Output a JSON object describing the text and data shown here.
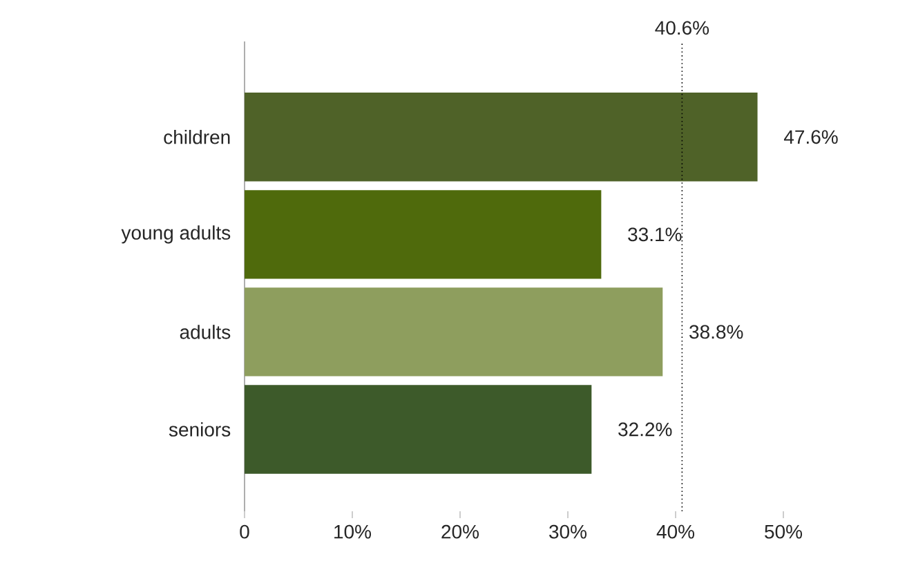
{
  "chart_data": {
    "type": "bar",
    "orientation": "horizontal",
    "categories": [
      "children",
      "young adults",
      "adults",
      "seniors"
    ],
    "values": [
      47.6,
      33.1,
      38.8,
      32.2
    ],
    "colors": [
      "#4f6228",
      "#4f6a0c",
      "#8e9e5e",
      "#3d5a2a"
    ],
    "value_labels": [
      "47.6%",
      "33.1%",
      "38.8%",
      "32.2%"
    ],
    "xlim": [
      0,
      50
    ],
    "xticks": [
      {
        "value": 0,
        "label": "0"
      },
      {
        "value": 10,
        "label": "10%"
      },
      {
        "value": 20,
        "label": "20%"
      },
      {
        "value": 30,
        "label": "30%"
      },
      {
        "value": 40,
        "label": "40%"
      },
      {
        "value": 50,
        "label": "50%"
      }
    ],
    "ref_lines": [
      {
        "axis": "x",
        "value": 40.6,
        "label": "40.6%",
        "line_style": "dotted"
      }
    ],
    "grid": false
  }
}
